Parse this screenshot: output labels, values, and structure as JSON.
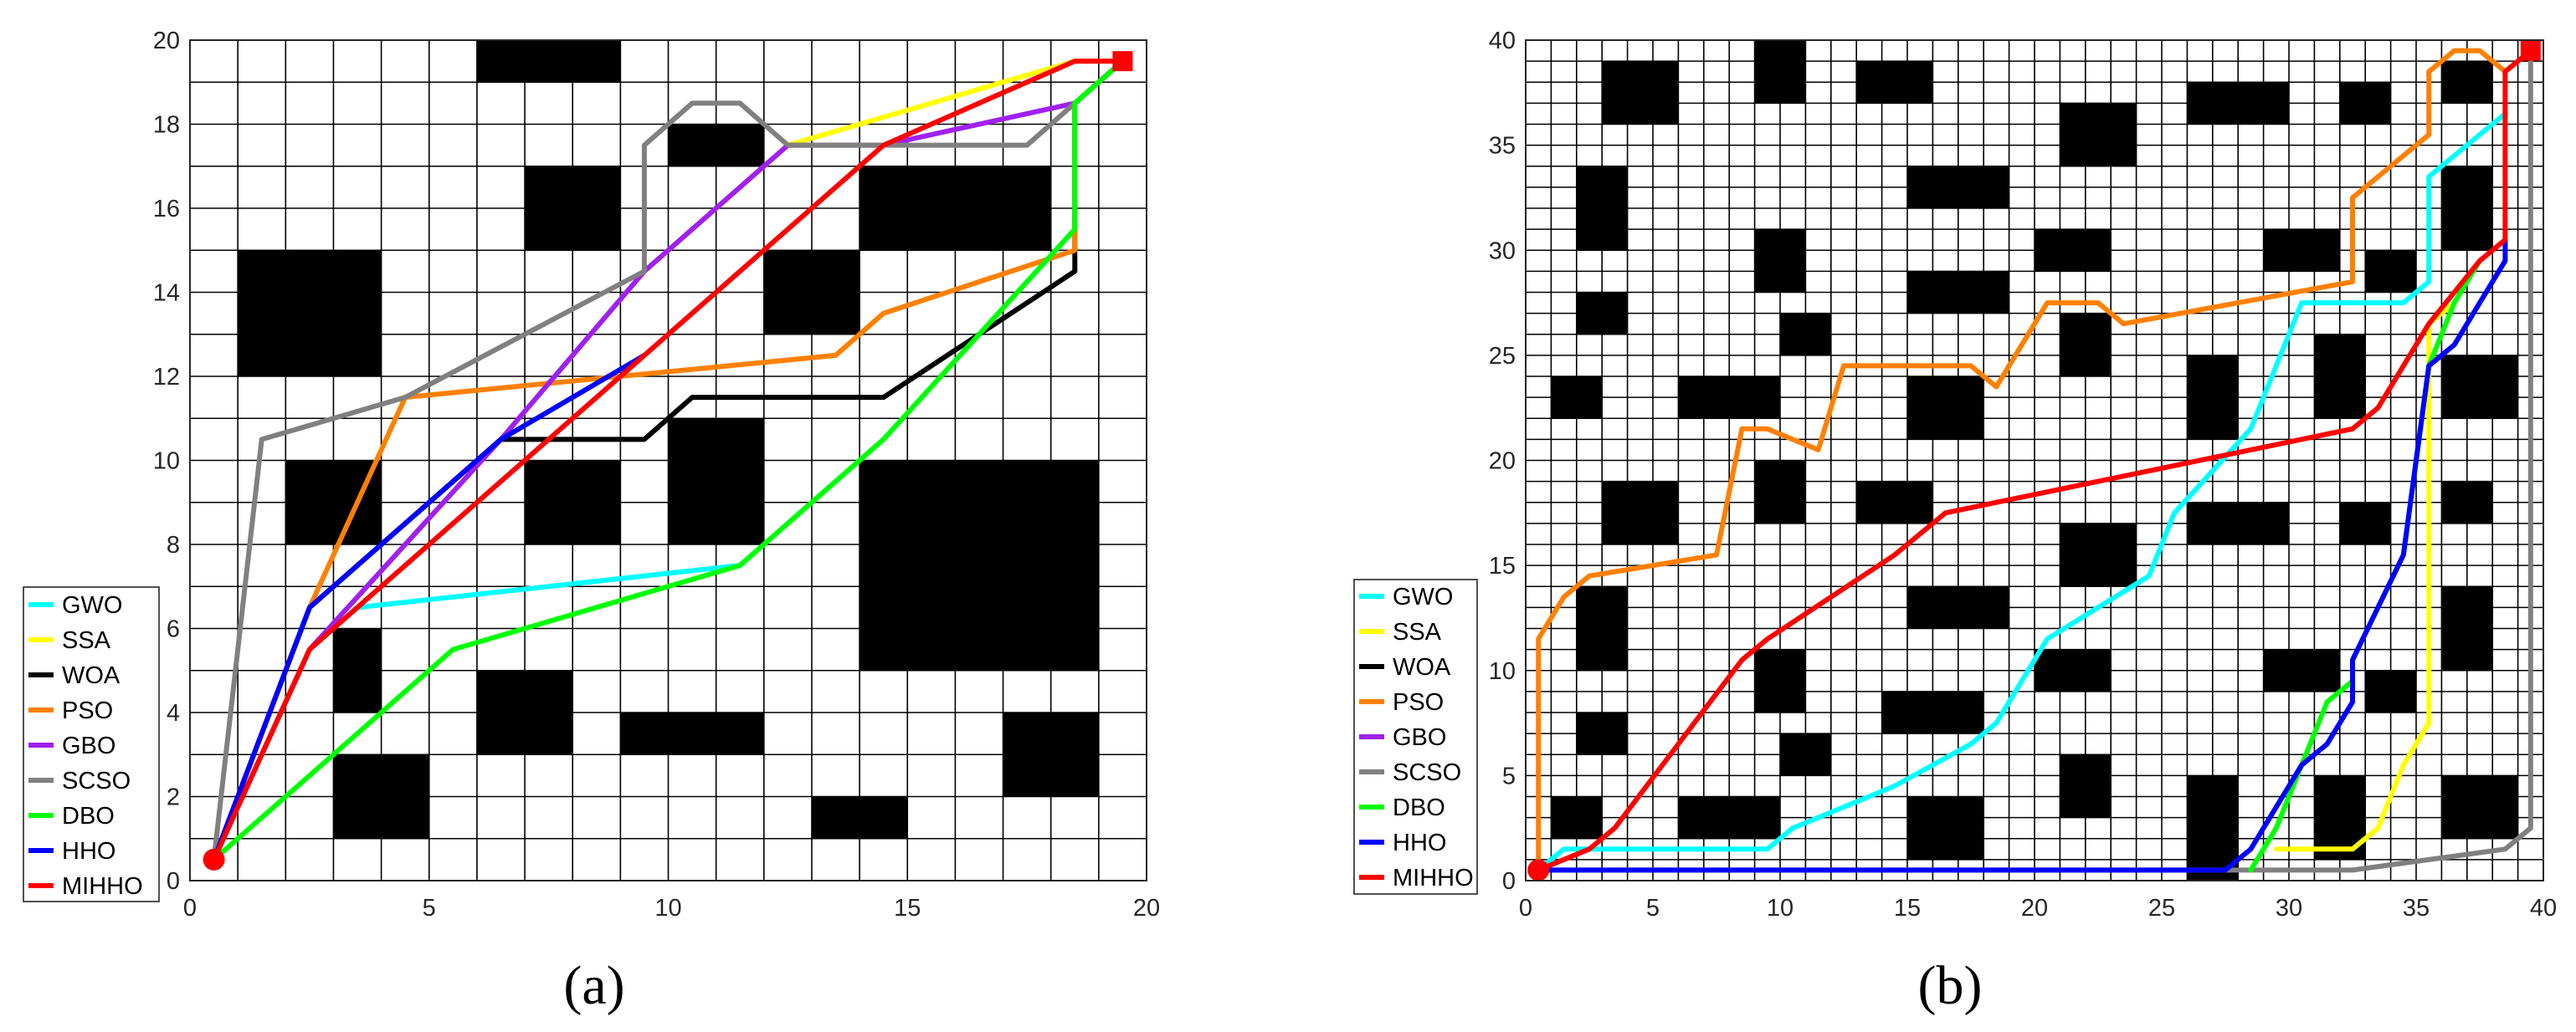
{
  "chart_data": [
    {
      "type": "path-planning-grid",
      "panel_label": "(a)",
      "grid_size": 20,
      "xlim": [
        0,
        20
      ],
      "ylim": [
        0,
        20
      ],
      "xticks": [
        0,
        5,
        10,
        15,
        20
      ],
      "yticks": [
        0,
        2,
        4,
        6,
        8,
        10,
        12,
        14,
        16,
        18,
        20
      ],
      "grid": true,
      "start": [
        0.5,
        0.5
      ],
      "goal": [
        19.5,
        19.5
      ],
      "obstacles": [
        [
          6,
          19,
          9,
          20
        ],
        [
          10,
          17,
          12,
          18
        ],
        [
          7,
          15,
          9,
          17
        ],
        [
          14,
          15,
          18,
          17
        ],
        [
          1,
          12,
          4,
          15
        ],
        [
          12,
          13,
          14,
          15
        ],
        [
          2,
          8,
          4,
          10
        ],
        [
          7,
          8,
          9,
          10
        ],
        [
          10,
          8,
          12,
          11
        ],
        [
          14,
          5,
          19,
          10
        ],
        [
          3,
          4,
          4,
          6
        ],
        [
          6,
          3,
          8,
          5
        ],
        [
          9,
          3,
          12,
          4
        ],
        [
          3,
          1,
          5,
          3
        ],
        [
          13,
          1,
          15,
          2
        ],
        [
          17,
          2,
          19,
          4
        ]
      ],
      "legend_position": "bottom-left",
      "series": [
        {
          "name": "GWO",
          "color": "#00ffff",
          "points": [
            [
              0.5,
              0.5
            ],
            [
              2.5,
              5.5
            ],
            [
              3.5,
              6.5
            ],
            [
              11.5,
              7.5
            ],
            [
              14.5,
              10.5
            ],
            [
              18.5,
              15.5
            ],
            [
              18.5,
              18.5
            ],
            [
              19.5,
              19.5
            ]
          ]
        },
        {
          "name": "SSA",
          "color": "#ffff00",
          "points": [
            [
              0.5,
              0.5
            ],
            [
              2.5,
              5.5
            ],
            [
              6.5,
              10.5
            ],
            [
              9.5,
              14.5
            ],
            [
              12.5,
              17.5
            ],
            [
              18.5,
              19.5
            ],
            [
              19.5,
              19.5
            ]
          ]
        },
        {
          "name": "WOA",
          "color": "#000000",
          "points": [
            [
              0.5,
              0.5
            ],
            [
              2.5,
              6.5
            ],
            [
              6.5,
              10.5
            ],
            [
              9.5,
              10.5
            ],
            [
              10.5,
              11.5
            ],
            [
              14.5,
              11.5
            ],
            [
              18.5,
              14.5
            ],
            [
              18.5,
              18.5
            ],
            [
              19.5,
              19.5
            ]
          ]
        },
        {
          "name": "PSO",
          "color": "#ff8000",
          "points": [
            [
              0.5,
              0.5
            ],
            [
              2.5,
              6.5
            ],
            [
              4.5,
              11.5
            ],
            [
              13.5,
              12.5
            ],
            [
              14.5,
              13.5
            ],
            [
              18.5,
              15.0
            ],
            [
              18.5,
              18.5
            ],
            [
              19.5,
              19.5
            ]
          ]
        },
        {
          "name": "GBO",
          "color": "#a020f0",
          "points": [
            [
              0.5,
              0.5
            ],
            [
              2.5,
              5.5
            ],
            [
              6.5,
              10.5
            ],
            [
              9.5,
              14.5
            ],
            [
              12.5,
              17.5
            ],
            [
              14.5,
              17.5
            ],
            [
              18.5,
              18.5
            ],
            [
              19.5,
              19.5
            ]
          ]
        },
        {
          "name": "SCSO",
          "color": "#808080",
          "points": [
            [
              0.5,
              0.5
            ],
            [
              1.5,
              10.5
            ],
            [
              4.5,
              11.5
            ],
            [
              9.5,
              14.5
            ],
            [
              9.5,
              17.5
            ],
            [
              10.5,
              18.5
            ],
            [
              11.5,
              18.5
            ],
            [
              12.5,
              17.5
            ],
            [
              17.5,
              17.5
            ],
            [
              18.5,
              18.5
            ],
            [
              19.5,
              19.5
            ]
          ]
        },
        {
          "name": "DBO",
          "color": "#00ff00",
          "points": [
            [
              0.5,
              0.5
            ],
            [
              5.5,
              5.5
            ],
            [
              11.5,
              7.5
            ],
            [
              14.5,
              10.5
            ],
            [
              18.5,
              15.5
            ],
            [
              18.5,
              18.5
            ],
            [
              19.5,
              19.5
            ]
          ]
        },
        {
          "name": "HHO",
          "color": "#0000ff",
          "points": [
            [
              0.5,
              0.5
            ],
            [
              2.5,
              6.5
            ],
            [
              6.5,
              10.5
            ],
            [
              9.5,
              12.5
            ]
          ]
        },
        {
          "name": "MIHHO",
          "color": "#ff0000",
          "points": [
            [
              0.5,
              0.5
            ],
            [
              2.5,
              5.5
            ],
            [
              6.5,
              9.5
            ],
            [
              14.5,
              17.5
            ],
            [
              18.5,
              19.5
            ],
            [
              19.5,
              19.5
            ]
          ]
        }
      ]
    },
    {
      "type": "path-planning-grid",
      "panel_label": "(b)",
      "grid_size": 40,
      "xlim": [
        0,
        40
      ],
      "ylim": [
        0,
        40
      ],
      "xticks": [
        0,
        5,
        10,
        15,
        20,
        25,
        30,
        35,
        40
      ],
      "yticks": [
        0,
        5,
        10,
        15,
        20,
        25,
        30,
        35,
        40
      ],
      "grid": true,
      "start": [
        0.5,
        0.5
      ],
      "goal": [
        39.5,
        39.5
      ],
      "obstacles": [
        [
          3,
          36,
          6,
          39
        ],
        [
          9,
          37,
          11,
          40
        ],
        [
          13,
          37,
          16,
          39
        ],
        [
          21,
          34,
          24,
          37
        ],
        [
          26,
          36,
          30,
          38
        ],
        [
          32,
          36,
          34,
          38
        ],
        [
          36,
          37,
          38,
          39
        ],
        [
          2,
          30,
          4,
          34
        ],
        [
          15,
          32,
          19,
          34
        ],
        [
          36,
          30,
          38,
          34
        ],
        [
          9,
          28,
          11,
          31
        ],
        [
          15,
          27,
          19,
          29
        ],
        [
          20,
          29,
          23,
          31
        ],
        [
          29,
          29,
          32,
          31
        ],
        [
          33,
          28,
          35,
          30
        ],
        [
          2,
          26,
          4,
          28
        ],
        [
          10,
          25,
          12,
          27
        ],
        [
          21,
          24,
          23,
          27
        ],
        [
          1,
          22,
          3,
          24
        ],
        [
          6,
          22,
          10,
          24
        ],
        [
          15,
          21,
          18,
          24
        ],
        [
          26,
          21,
          28,
          25
        ],
        [
          31,
          22,
          33,
          26
        ],
        [
          36,
          22,
          39,
          25
        ],
        [
          3,
          16,
          6,
          19
        ],
        [
          9,
          17,
          11,
          20
        ],
        [
          13,
          17,
          16,
          19
        ],
        [
          21,
          14,
          24,
          17
        ],
        [
          26,
          16,
          30,
          18
        ],
        [
          32,
          16,
          34,
          18
        ],
        [
          36,
          17,
          38,
          19
        ],
        [
          2,
          10,
          4,
          14
        ],
        [
          15,
          12,
          19,
          14
        ],
        [
          36,
          10,
          38,
          14
        ],
        [
          9,
          8,
          11,
          11
        ],
        [
          14,
          7,
          18,
          9
        ],
        [
          20,
          9,
          23,
          11
        ],
        [
          29,
          9,
          32,
          11
        ],
        [
          33,
          8,
          35,
          10
        ],
        [
          2,
          6,
          4,
          8
        ],
        [
          10,
          5,
          12,
          7
        ],
        [
          21,
          3,
          23,
          6
        ],
        [
          1,
          2,
          3,
          4
        ],
        [
          6,
          2,
          10,
          4
        ],
        [
          15,
          1,
          18,
          4
        ],
        [
          26,
          0,
          28,
          5
        ],
        [
          31,
          1,
          33,
          5
        ],
        [
          36,
          2,
          39,
          5
        ]
      ],
      "legend_position": "bottom-left",
      "series": [
        {
          "name": "GWO",
          "color": "#00ffff",
          "points": [
            [
              0.5,
              0.5
            ],
            [
              1.5,
              1.5
            ],
            [
              9.5,
              1.5
            ],
            [
              10.5,
              2.5
            ],
            [
              14.5,
              4.5
            ],
            [
              17.5,
              6.5
            ],
            [
              18.5,
              7.5
            ],
            [
              19.5,
              9.5
            ],
            [
              20.5,
              11.5
            ],
            [
              24.5,
              14.5
            ],
            [
              25.5,
              17.5
            ],
            [
              28.5,
              21.5
            ],
            [
              30.5,
              27.5
            ],
            [
              34.5,
              27.5
            ],
            [
              35.5,
              28.5
            ],
            [
              35.5,
              33.5
            ],
            [
              38.5,
              36.5
            ]
          ]
        },
        {
          "name": "SSA",
          "color": "#ffff00",
          "points": [
            [
              29.5,
              1.5
            ],
            [
              32.5,
              1.5
            ],
            [
              33.5,
              2.5
            ],
            [
              34.5,
              5.5
            ],
            [
              35.5,
              7.5
            ],
            [
              35.5,
              26.5
            ],
            [
              36.5,
              27.5
            ]
          ]
        },
        {
          "name": "WOA",
          "color": "#000000",
          "points": []
        },
        {
          "name": "PSO",
          "color": "#ff8000",
          "points": [
            [
              0.5,
              0.5
            ],
            [
              0.5,
              11.5
            ],
            [
              1.5,
              13.5
            ],
            [
              2.5,
              14.5
            ],
            [
              7.5,
              15.5
            ],
            [
              8.5,
              21.5
            ],
            [
              9.5,
              21.5
            ],
            [
              11.5,
              20.5
            ],
            [
              12.5,
              24.5
            ],
            [
              17.5,
              24.5
            ],
            [
              18.5,
              23.5
            ],
            [
              20.5,
              27.5
            ],
            [
              22.5,
              27.5
            ],
            [
              23.5,
              26.5
            ],
            [
              32.5,
              28.5
            ],
            [
              32.5,
              32.5
            ],
            [
              35.5,
              35.5
            ],
            [
              35.5,
              38.5
            ],
            [
              36.5,
              39.5
            ],
            [
              37.5,
              39.5
            ],
            [
              38.5,
              38.5
            ],
            [
              39.5,
              39.5
            ]
          ]
        },
        {
          "name": "GBO",
          "color": "#a020f0",
          "points": []
        },
        {
          "name": "SCSO",
          "color": "#808080",
          "points": [
            [
              0.5,
              0.5
            ],
            [
              27.5,
              0.5
            ],
            [
              32.5,
              0.5
            ],
            [
              35.5,
              1.0
            ],
            [
              38.5,
              1.5
            ],
            [
              39.5,
              2.5
            ],
            [
              39.5,
              39.5
            ]
          ]
        },
        {
          "name": "DBO",
          "color": "#00ff00",
          "points": [
            [
              28.5,
              0.5
            ],
            [
              29.5,
              2.5
            ],
            [
              31.5,
              8.5
            ],
            [
              32.5,
              9.5
            ],
            [
              32.5,
              10.5
            ],
            [
              34.5,
              15.5
            ],
            [
              35.5,
              24.5
            ],
            [
              36.5,
              27.5
            ],
            [
              37.5,
              29.5
            ]
          ]
        },
        {
          "name": "HHO",
          "color": "#0000ff",
          "points": [
            [
              0.5,
              0.5
            ],
            [
              27.5,
              0.5
            ],
            [
              28.5,
              1.5
            ],
            [
              29.5,
              3.5
            ],
            [
              30.5,
              5.5
            ],
            [
              31.5,
              6.5
            ],
            [
              32.5,
              8.5
            ],
            [
              32.5,
              10.5
            ],
            [
              34.5,
              15.5
            ],
            [
              35.5,
              24.5
            ],
            [
              36.5,
              25.5
            ],
            [
              38.5,
              29.5
            ],
            [
              38.5,
              30.5
            ]
          ]
        },
        {
          "name": "MIHHO",
          "color": "#ff0000",
          "points": [
            [
              0.5,
              0.5
            ],
            [
              2.5,
              1.5
            ],
            [
              3.5,
              2.5
            ],
            [
              8.5,
              10.5
            ],
            [
              9.5,
              11.5
            ],
            [
              14.5,
              15.5
            ],
            [
              16.5,
              17.5
            ],
            [
              32.5,
              21.5
            ],
            [
              33.5,
              22.5
            ],
            [
              35.5,
              26.5
            ],
            [
              37.5,
              29.5
            ],
            [
              38.5,
              30.5
            ],
            [
              38.5,
              38.5
            ],
            [
              39.5,
              39.5
            ]
          ]
        }
      ]
    }
  ]
}
